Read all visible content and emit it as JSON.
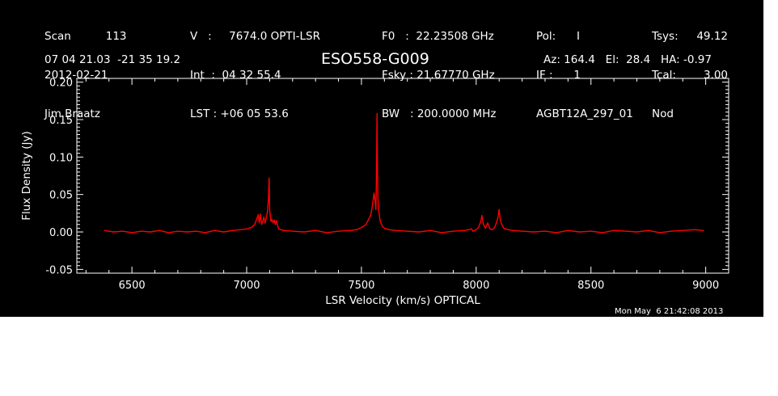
{
  "header": {
    "col1": [
      "Scan          113",
      "2012-02-21",
      "Jim Braatz"
    ],
    "col2": [
      "V   :     7674.0 OPTI-LSR",
      "Int  :  04 32 55.4",
      "LST : +06 05 53.6"
    ],
    "col3": [
      "F0   :  22.23508 GHz",
      "Fsky : 21.67770 GHz",
      "BW   : 200.0000 MHz"
    ],
    "col4": [
      "Pol:      I",
      "IF :      1",
      "AGBT12A_297_01"
    ],
    "col5a": [
      "Tsys:",
      "Tcal:",
      "Nod"
    ],
    "col5b": [
      "49.12",
      "3.00",
      ""
    ],
    "coords": "07 04 21.03  -21 35 19.2",
    "source": "ESO558-G009",
    "azel": "Az: 164.4   El:  28.4   HA: -0.97",
    "timestamp": "Mon May  6 21:42:08 2013"
  },
  "colors": {
    "background": "#000000",
    "axes": "#ffffff",
    "trace": "#ff0000"
  },
  "chart_data": {
    "type": "line",
    "xlabel": "LSR Velocity (km/s) OPTICAL",
    "ylabel": "Flux Density (Jy)",
    "xlim": [
      6260,
      9100
    ],
    "ylim": [
      -0.055,
      0.205
    ],
    "xticks": [
      6500,
      7000,
      7500,
      8000,
      8500,
      9000
    ],
    "xtick_labels": [
      "6500",
      "7000",
      "7500",
      "8000",
      "8500",
      "9000"
    ],
    "yticks": [
      -0.05,
      0.0,
      0.05,
      0.1,
      0.15,
      0.2
    ],
    "ytick_labels": [
      "-0.05",
      "0.00",
      "0.05",
      "0.10",
      "0.15",
      "0.20"
    ],
    "series": [
      {
        "x": [
          6380,
          6420,
          6460,
          6500,
          6540,
          6580,
          6620,
          6660,
          6700,
          6740,
          6780,
          6820,
          6860,
          6900,
          6940,
          6970,
          7000,
          7020,
          7035,
          7045,
          7050,
          7055,
          7060,
          7065,
          7070,
          7075,
          7080,
          7085,
          7090,
          7095,
          7098,
          7100,
          7103,
          7106,
          7110,
          7115,
          7120,
          7125,
          7130,
          7135,
          7140,
          7160,
          7200,
          7250,
          7300,
          7350,
          7400,
          7450,
          7480,
          7500,
          7520,
          7530,
          7540,
          7545,
          7550,
          7555,
          7560,
          7563,
          7566,
          7568,
          7570,
          7572,
          7575,
          7578,
          7582,
          7590,
          7600,
          7620,
          7650,
          7700,
          7750,
          7800,
          7850,
          7900,
          7950,
          7980,
          7985,
          8000,
          8010,
          8020,
          8025,
          8030,
          8035,
          8040,
          8050,
          8060,
          8070,
          8080,
          8090,
          8095,
          8100,
          8105,
          8110,
          8115,
          8120,
          8140,
          8160,
          8200,
          8250,
          8300,
          8350,
          8400,
          8450,
          8500,
          8550,
          8600,
          8650,
          8700,
          8750,
          8800,
          8850,
          8900,
          8950,
          8990
        ],
        "y": [
          0.002,
          0.0,
          0.001,
          -0.001,
          0.001,
          0.0,
          0.002,
          -0.001,
          0.001,
          0.0,
          0.001,
          -0.001,
          0.002,
          0.0,
          0.002,
          0.003,
          0.004,
          0.006,
          0.01,
          0.018,
          0.023,
          0.012,
          0.024,
          0.01,
          0.014,
          0.02,
          0.012,
          0.018,
          0.026,
          0.045,
          0.072,
          0.03,
          0.022,
          0.014,
          0.017,
          0.012,
          0.016,
          0.01,
          0.015,
          0.008,
          0.004,
          0.002,
          0.001,
          0.0,
          0.002,
          -0.001,
          0.001,
          0.002,
          0.003,
          0.006,
          0.01,
          0.016,
          0.022,
          0.03,
          0.04,
          0.052,
          0.04,
          0.03,
          0.08,
          0.158,
          0.075,
          0.045,
          0.03,
          0.022,
          0.014,
          0.008,
          0.005,
          0.003,
          0.002,
          0.001,
          0.0,
          0.002,
          -0.001,
          0.001,
          0.002,
          0.004,
          0.001,
          0.003,
          0.006,
          0.014,
          0.022,
          0.012,
          0.008,
          0.005,
          0.012,
          0.004,
          0.003,
          0.006,
          0.014,
          0.02,
          0.03,
          0.016,
          0.011,
          0.008,
          0.005,
          0.003,
          0.002,
          0.001,
          0.0,
          0.001,
          -0.001,
          0.002,
          0.0,
          0.001,
          -0.001,
          0.002,
          0.001,
          0.0,
          0.002,
          -0.001,
          0.001,
          0.002,
          0.003,
          0.002
        ]
      }
    ]
  }
}
